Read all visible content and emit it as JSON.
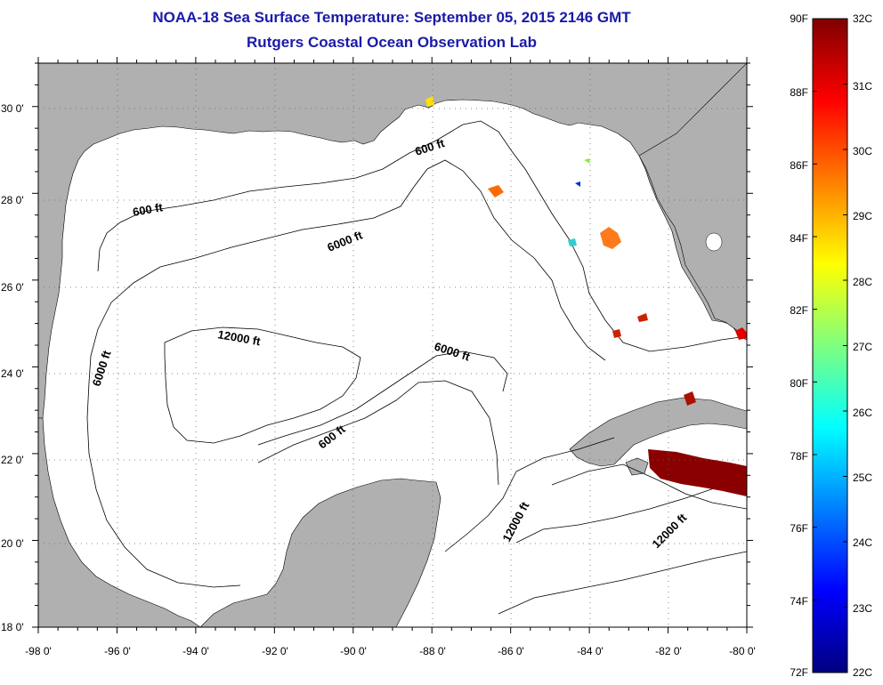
{
  "title": "NOAA-18 Sea Surface Temperature:  September 05, 2015 2146 GMT",
  "subtitle": "Rutgers Coastal Ocean Observation Lab",
  "map": {
    "lon_range": [
      -98,
      -80
    ],
    "lat_range": [
      18,
      31
    ],
    "lat_ticks": [
      "30 0'",
      "28 0'",
      "26 0'",
      "24 0'",
      "22 0'",
      "20 0'",
      "18 0'"
    ],
    "lon_ticks": [
      "-98 0'",
      "-96 0'",
      "-94 0'",
      "-92 0'",
      "-90 0'",
      "-88 0'",
      "-86 0'",
      "-84 0'",
      "-82 0'",
      "-80 0'"
    ],
    "grid": "dotted",
    "land_color": "#b0b0b0",
    "ocean_color": "#ffffff",
    "contour_labels": [
      "600 ft",
      "600 ft",
      "6000 ft",
      "6000 ft",
      "6000 ft",
      "12000 ft",
      "600 ft",
      "12000 ft",
      "12000 ft"
    ]
  },
  "colorbar": {
    "f_labels": [
      "90F",
      "88F",
      "86F",
      "84F",
      "82F",
      "80F",
      "78F",
      "76F",
      "74F",
      "72F"
    ],
    "c_labels": [
      "32C",
      "31C",
      "30C",
      "29C",
      "28C",
      "27C",
      "26C",
      "25C",
      "24C",
      "23C",
      "22C"
    ],
    "colormap": [
      "#00007f",
      "#0000ff",
      "#007fff",
      "#00ffff",
      "#7fff7f",
      "#ffff00",
      "#ff7f00",
      "#ff0000",
      "#7f0000"
    ]
  }
}
